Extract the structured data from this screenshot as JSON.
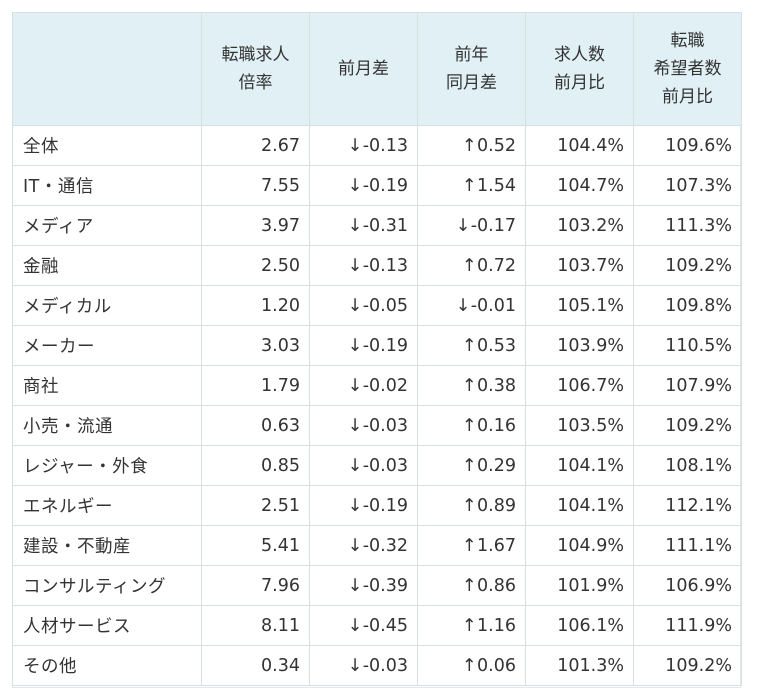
{
  "table": {
    "headers": [
      [
        ""
      ],
      [
        "転職求人",
        "倍率"
      ],
      [
        "前月差"
      ],
      [
        "前年",
        "同月差"
      ],
      [
        "求人数",
        "前月比"
      ],
      [
        "転職",
        "希望者数",
        "前月比"
      ]
    ],
    "rows": [
      {
        "name": "全体",
        "ratio": "2.67",
        "mom_arrow": "↓",
        "mom": "-0.13",
        "yoy_arrow": "↑",
        "yoy": "0.52",
        "jobs": "104.4%",
        "seekers": "109.6%"
      },
      {
        "name": "IT・通信",
        "ratio": "7.55",
        "mom_arrow": "↓",
        "mom": "-0.19",
        "yoy_arrow": "↑",
        "yoy": "1.54",
        "jobs": "104.7%",
        "seekers": "107.3%"
      },
      {
        "name": "メディア",
        "ratio": "3.97",
        "mom_arrow": "↓",
        "mom": "-0.31",
        "yoy_arrow": "↓",
        "yoy": "-0.17",
        "jobs": "103.2%",
        "seekers": "111.3%"
      },
      {
        "name": "金融",
        "ratio": "2.50",
        "mom_arrow": "↓",
        "mom": "-0.13",
        "yoy_arrow": "↑",
        "yoy": "0.72",
        "jobs": "103.7%",
        "seekers": "109.2%"
      },
      {
        "name": "メディカル",
        "ratio": "1.20",
        "mom_arrow": "↓",
        "mom": "-0.05",
        "yoy_arrow": "↓",
        "yoy": "-0.01",
        "jobs": "105.1%",
        "seekers": "109.8%"
      },
      {
        "name": "メーカー",
        "ratio": "3.03",
        "mom_arrow": "↓",
        "mom": "-0.19",
        "yoy_arrow": "↑",
        "yoy": "0.53",
        "jobs": "103.9%",
        "seekers": "110.5%"
      },
      {
        "name": "商社",
        "ratio": "1.79",
        "mom_arrow": "↓",
        "mom": "-0.02",
        "yoy_arrow": "↑",
        "yoy": "0.38",
        "jobs": "106.7%",
        "seekers": "107.9%"
      },
      {
        "name": "小売・流通",
        "ratio": "0.63",
        "mom_arrow": "↓",
        "mom": "-0.03",
        "yoy_arrow": "↑",
        "yoy": "0.16",
        "jobs": "103.5%",
        "seekers": "109.2%"
      },
      {
        "name": "レジャー・外食",
        "ratio": "0.85",
        "mom_arrow": "↓",
        "mom": "-0.03",
        "yoy_arrow": "↑",
        "yoy": "0.29",
        "jobs": "104.1%",
        "seekers": "108.1%"
      },
      {
        "name": "エネルギー",
        "ratio": "2.51",
        "mom_arrow": "↓",
        "mom": "-0.19",
        "yoy_arrow": "↑",
        "yoy": "0.89",
        "jobs": "104.1%",
        "seekers": "112.1%"
      },
      {
        "name": "建設・不動産",
        "ratio": "5.41",
        "mom_arrow": "↓",
        "mom": "-0.32",
        "yoy_arrow": "↑",
        "yoy": "1.67",
        "jobs": "104.9%",
        "seekers": "111.1%"
      },
      {
        "name": "コンサルティング",
        "ratio": "7.96",
        "mom_arrow": "↓",
        "mom": "-0.39",
        "yoy_arrow": "↑",
        "yoy": "0.86",
        "jobs": "101.9%",
        "seekers": "106.9%"
      },
      {
        "name": "人材サービス",
        "ratio": "8.11",
        "mom_arrow": "↓",
        "mom": "-0.45",
        "yoy_arrow": "↑",
        "yoy": "1.16",
        "jobs": "106.1%",
        "seekers": "111.9%"
      },
      {
        "name": "その他",
        "ratio": "0.34",
        "mom_arrow": "↓",
        "mom": "-0.03",
        "yoy_arrow": "↑",
        "yoy": "0.06",
        "jobs": "101.3%",
        "seekers": "109.2%"
      }
    ]
  },
  "colors": {
    "header_bg": "#e1f0f5",
    "border": "#d8dfe3",
    "text": "#333333"
  }
}
